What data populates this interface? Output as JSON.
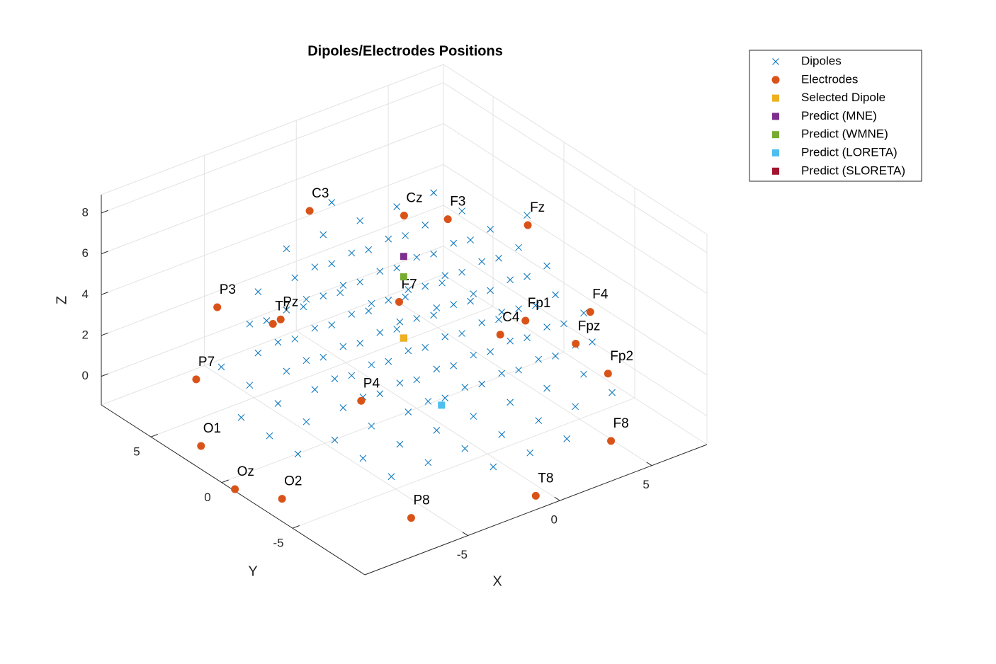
{
  "chart_data": {
    "type": "scatter3d",
    "title": "Dipoles/Electrodes Positions",
    "xlabel": "X",
    "ylabel": "Y",
    "zlabel": "Z",
    "xlim": [
      -10.6,
      8
    ],
    "ylim": [
      -10.1,
      8.5
    ],
    "zlim": [
      -1.4,
      8.9
    ],
    "xticks": [
      -5,
      0,
      5
    ],
    "yticks": [
      -5,
      0,
      5
    ],
    "zticks": [
      0,
      2,
      4,
      6,
      8
    ],
    "grid": true,
    "legend": "northeastoutside",
    "series": [
      {
        "name": "Dipoles",
        "color": "#0072bd",
        "marker": "x",
        "x": [
          -8,
          -8,
          -8,
          -6,
          -6,
          -6,
          -6,
          -6,
          -6,
          -6,
          -4,
          -4,
          -4,
          -4,
          -4,
          -4,
          -4,
          -2,
          -2,
          -2,
          -2,
          -2,
          -2,
          -2,
          -2,
          -2,
          0,
          0,
          0,
          0,
          0,
          0,
          0,
          0,
          0,
          2,
          2,
          2,
          2,
          2,
          2,
          2,
          2,
          2,
          4,
          4,
          4,
          4,
          4,
          4,
          4,
          6,
          6,
          6,
          6,
          6,
          6,
          6,
          8,
          8,
          8,
          -6,
          -6,
          -6,
          -6,
          -6,
          -4,
          -4,
          -4,
          -4,
          -4,
          -4,
          -4,
          -2,
          -2,
          -2,
          -2,
          -2,
          -2,
          -2,
          0,
          0,
          0,
          0,
          0,
          0,
          0,
          2,
          2,
          2,
          2,
          2,
          2,
          2,
          4,
          4,
          4,
          4,
          4,
          4,
          4,
          6,
          6,
          6,
          6,
          6,
          -6,
          -4,
          -4,
          -4,
          -4,
          -4,
          -2,
          -2,
          -2,
          -2,
          -2,
          0,
          0,
          0,
          0,
          0,
          0,
          0,
          2,
          2,
          2,
          2,
          2,
          4,
          4,
          4,
          4,
          4,
          6
        ],
        "y": [
          -2,
          0,
          2,
          -6,
          -4,
          -2,
          0,
          2,
          4,
          6,
          -6,
          -4,
          -2,
          0,
          2,
          4,
          6,
          -8,
          -6,
          -4,
          -2,
          0,
          2,
          4,
          6,
          8,
          -8,
          -6,
          -4,
          -2,
          0,
          2,
          4,
          6,
          8,
          -8,
          -6,
          -4,
          -2,
          0,
          2,
          4,
          6,
          8,
          -6,
          -4,
          -2,
          0,
          2,
          4,
          6,
          -6,
          -4,
          -2,
          0,
          2,
          4,
          6,
          -2,
          0,
          2,
          -4,
          -2,
          0,
          2,
          4,
          -6,
          -4,
          -2,
          0,
          2,
          4,
          6,
          -6,
          -4,
          -2,
          0,
          2,
          4,
          6,
          -6,
          -4,
          -2,
          0,
          2,
          4,
          6,
          -6,
          -4,
          -2,
          0,
          2,
          4,
          6,
          -6,
          -4,
          -2,
          0,
          2,
          4,
          6,
          -4,
          -2,
          0,
          2,
          4,
          0,
          -4,
          -2,
          0,
          2,
          4,
          -4,
          -2,
          0,
          2,
          4,
          -6,
          -4,
          -2,
          0,
          2,
          4,
          6,
          -4,
          -2,
          0,
          2,
          4,
          -4,
          -2,
          0,
          2,
          4,
          0
        ],
        "z": [
          0,
          0,
          0,
          0,
          0,
          0,
          0,
          0,
          0,
          0,
          0,
          0,
          0,
          0,
          0,
          0,
          0,
          0,
          0,
          0,
          0,
          0,
          0,
          0,
          0,
          0,
          0,
          0,
          0,
          0,
          0,
          0,
          0,
          0,
          0,
          0,
          0,
          0,
          0,
          0,
          0,
          0,
          0,
          0,
          0,
          0,
          0,
          0,
          0,
          0,
          0,
          0,
          0,
          0,
          0,
          0,
          0,
          0,
          0,
          0,
          0,
          3,
          3,
          3,
          3,
          3,
          3,
          3,
          3,
          3,
          3,
          3,
          3,
          3,
          3,
          3,
          3,
          3,
          3,
          3,
          3,
          3,
          3,
          3,
          3,
          3,
          3,
          3,
          3,
          3,
          3,
          3,
          3,
          3,
          3,
          3,
          3,
          3,
          3,
          3,
          3,
          3,
          3,
          3,
          3,
          3,
          6,
          6,
          6,
          6,
          6,
          6,
          6,
          6,
          6,
          6,
          6,
          6,
          6,
          6,
          6,
          6,
          6,
          6,
          6,
          6,
          6,
          6,
          6,
          6,
          6,
          6,
          6,
          6,
          6
        ]
      },
      {
        "name": "Electrodes",
        "color": "#d95319",
        "marker": "o",
        "labels": [
          "C3",
          "Cz",
          "F3",
          "Fz",
          "P3",
          "T7",
          "Pz",
          "F7",
          "C4",
          "Fp1",
          "F4",
          "Fpz",
          "Fp2",
          "P7",
          "P4",
          "O1",
          "Oz",
          "O2",
          "P8",
          "T8",
          "F8"
        ],
        "x": [
          -1.2,
          0.7,
          2.0,
          5.5,
          -7.3,
          -5.2,
          -4.7,
          -0.8,
          2.0,
          3.6,
          5.2,
          4.1,
          4.7,
          -8.6,
          -4.1,
          -9.8,
          -10.5,
          -9.4,
          -6.0,
          -1.0,
          3.4
        ],
        "y": [
          6.0,
          1.8,
          0.4,
          -0.7,
          4.6,
          3.4,
          3.5,
          0.2,
          -3.3,
          -3.0,
          -5.5,
          -5.9,
          -7.4,
          4.4,
          -1.4,
          2.5,
          -0.8,
          -2.7,
          -7.4,
          -9.7,
          -9.3
        ],
        "z": [
          6,
          7,
          7,
          6,
          4,
          3,
          3,
          4,
          3,
          3,
          4,
          3,
          2,
          1,
          1,
          -1,
          -1.4,
          -1.4,
          -1.4,
          -1,
          0
        ]
      },
      {
        "name": "Selected Dipole",
        "color": "#edb120",
        "marker": "s",
        "x": [
          -0.4
        ],
        "y": [
          0.4
        ],
        "z": [
          2
        ]
      },
      {
        "name": "Predict (MNE)",
        "color": "#7e2f8e",
        "marker": "s",
        "x": [
          -0.4
        ],
        "y": [
          0.4
        ],
        "z": [
          6
        ]
      },
      {
        "name": "Predict (WMNE)",
        "color": "#77ac30",
        "marker": "s",
        "x": [
          -0.4
        ],
        "y": [
          0.4
        ],
        "z": [
          5
        ]
      },
      {
        "name": "Predict (LORETA)",
        "color": "#4dbeee",
        "marker": "s",
        "x": [
          -0.5
        ],
        "y": [
          -2.4
        ],
        "z": [
          0
        ]
      },
      {
        "name": "Predict (SLORETA)",
        "color": "#a2142f",
        "marker": "s",
        "x": [
          -0.4
        ],
        "y": [
          0.4
        ],
        "z": [
          2
        ]
      }
    ]
  }
}
